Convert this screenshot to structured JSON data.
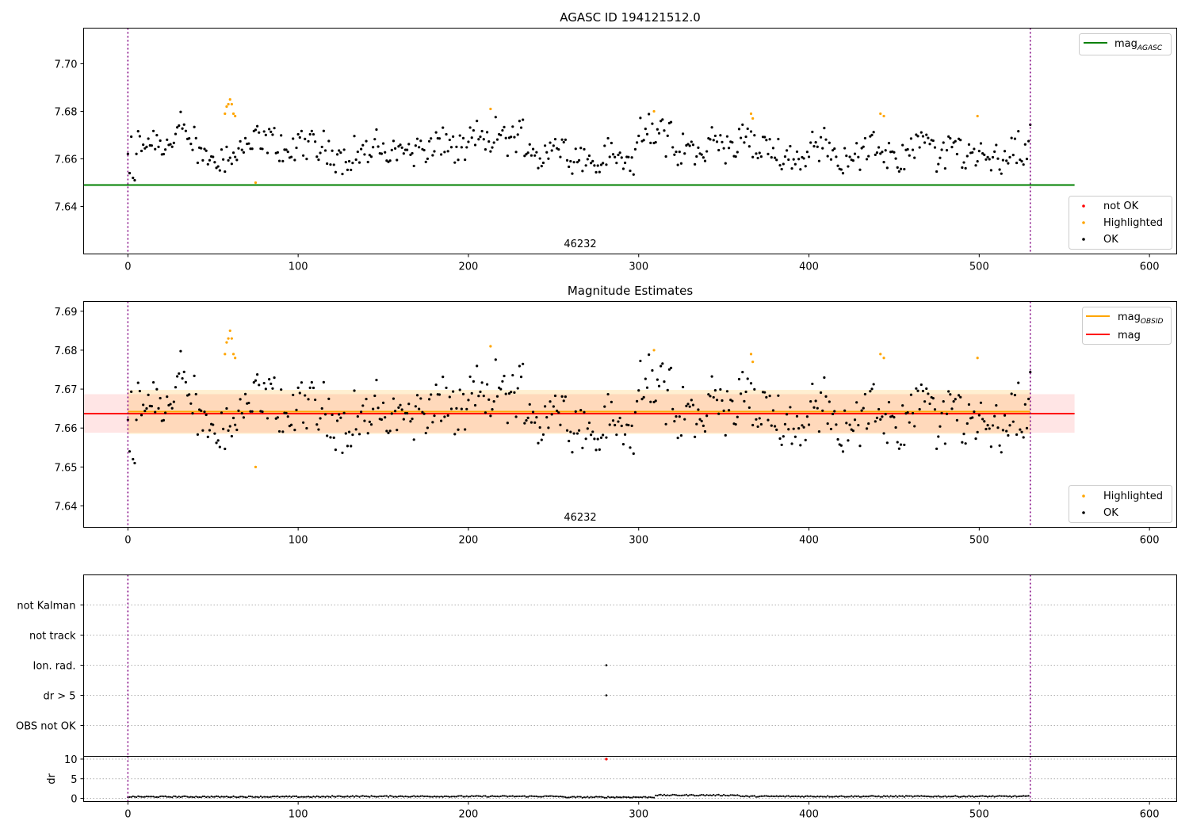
{
  "chart_data": [
    {
      "type": "scatter",
      "title": "AGASC ID 194121512.0",
      "xlim": [
        -26,
        616
      ],
      "ylim": [
        7.62,
        7.715
      ],
      "xticks": [
        0,
        100,
        200,
        300,
        400,
        500,
        600
      ],
      "yticks": [
        7.64,
        7.66,
        7.68,
        7.7
      ],
      "ytick_labels": [
        "7.64",
        "7.66",
        "7.68",
        "7.70"
      ],
      "obsid_label": "46232",
      "obsid_label_x": 265,
      "obs_boundaries": [
        0,
        530
      ],
      "mag_agasc": 7.649,
      "mag_agasc_range": [
        -26,
        556
      ],
      "line_legend": {
        "label": "mag",
        "sub": "AGASC",
        "color": "#008000",
        "position": "top-right"
      },
      "marker_legend": {
        "position": "bottom-right",
        "entries": [
          {
            "label": "not OK",
            "color": "#ff0000"
          },
          {
            "label": "Highlighted",
            "color": "#ffa500"
          },
          {
            "label": "OK",
            "color": "#000000"
          }
        ]
      },
      "highlighted_points": [
        [
          57,
          7.679
        ],
        [
          58,
          7.682
        ],
        [
          59,
          7.683
        ],
        [
          60,
          7.685
        ],
        [
          61,
          7.683
        ],
        [
          62,
          7.679
        ],
        [
          63,
          7.678
        ],
        [
          75,
          7.65
        ],
        [
          213,
          7.681
        ],
        [
          309,
          7.68
        ],
        [
          366,
          7.679
        ],
        [
          367,
          7.677
        ],
        [
          442,
          7.679
        ],
        [
          444,
          7.678
        ],
        [
          499,
          7.678
        ]
      ],
      "not_ok_points": []
    },
    {
      "type": "scatter",
      "title": "Magnitude Estimates",
      "xlim": [
        -26,
        616
      ],
      "ylim": [
        7.6345,
        7.6925
      ],
      "xticks": [
        0,
        100,
        200,
        300,
        400,
        500,
        600
      ],
      "yticks": [
        7.64,
        7.65,
        7.66,
        7.67,
        7.68,
        7.69
      ],
      "ytick_labels": [
        "7.64",
        "7.65",
        "7.66",
        "7.67",
        "7.68",
        "7.69"
      ],
      "obsid_label": "46232",
      "obsid_label_x": 265,
      "obs_boundaries": [
        0,
        530
      ],
      "mag": 7.6637,
      "mag_band": [
        7.6588,
        7.6687
      ],
      "mag_range": [
        -26,
        556
      ],
      "mag_obsid": 7.6642,
      "mag_obsid_band": [
        7.6585,
        7.6698
      ],
      "mag_obsid_range": [
        0,
        530
      ],
      "line_legend": {
        "position": "top-right",
        "entries": [
          {
            "label": "mag",
            "sub": "OBSID",
            "color": "#ffa500"
          },
          {
            "label": "mag",
            "sub": "",
            "color": "#ff0000"
          }
        ]
      },
      "marker_legend": {
        "position": "bottom-right",
        "entries": [
          {
            "label": "Highlighted",
            "color": "#ffa500"
          },
          {
            "label": "OK",
            "color": "#000000"
          }
        ]
      },
      "highlighted_points": [
        [
          57,
          7.679
        ],
        [
          58,
          7.682
        ],
        [
          59,
          7.683
        ],
        [
          60,
          7.685
        ],
        [
          61,
          7.683
        ],
        [
          62,
          7.679
        ],
        [
          63,
          7.678
        ],
        [
          75,
          7.65
        ],
        [
          213,
          7.681
        ],
        [
          309,
          7.68
        ],
        [
          366,
          7.679
        ],
        [
          367,
          7.677
        ],
        [
          442,
          7.679
        ],
        [
          444,
          7.678
        ],
        [
          499,
          7.678
        ]
      ]
    },
    {
      "type": "scatter",
      "title": "",
      "xlim": [
        -26,
        616
      ],
      "categories": [
        "not Kalman",
        "not track",
        "Ion. rad.",
        "dr > 5",
        "OBS not OK"
      ],
      "flag_points": [
        {
          "category": "Ion. rad.",
          "x": 281,
          "color": "#000000"
        },
        {
          "category": "dr > 5",
          "x": 281,
          "color": "#000000"
        }
      ],
      "obs_boundaries": [
        0,
        530
      ]
    },
    {
      "type": "scatter",
      "title": "",
      "ylabel": "dr",
      "xlim": [
        -26,
        616
      ],
      "ylim": [
        -0.8,
        10.7
      ],
      "xticks": [
        0,
        100,
        200,
        300,
        400,
        500,
        600
      ],
      "yticks": [
        0,
        5,
        10
      ],
      "ytick_labels": [
        "0",
        "5",
        "10"
      ],
      "dr_segments": [
        [
          0,
          120,
          0.4
        ],
        [
          120,
          255,
          0.5
        ],
        [
          255,
          310,
          0.3
        ],
        [
          310,
          360,
          0.8
        ],
        [
          360,
          530,
          0.5
        ]
      ],
      "outliers": [
        {
          "x": 281,
          "y": 10,
          "color": "#ff0000"
        }
      ],
      "obs_boundaries": [
        0,
        530
      ]
    }
  ]
}
